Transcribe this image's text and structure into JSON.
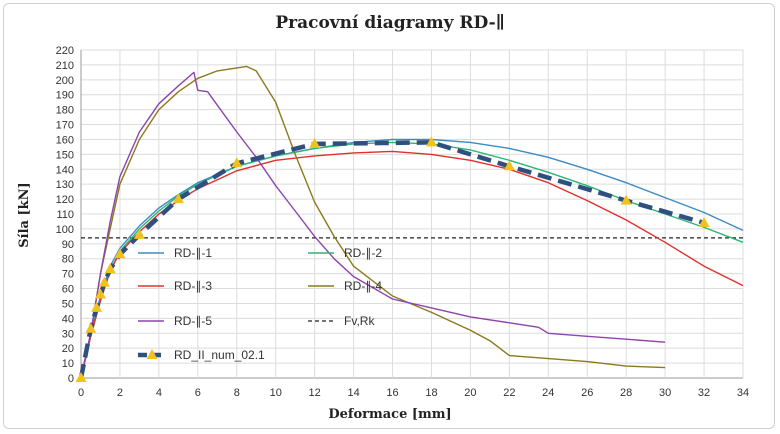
{
  "chart_data": {
    "type": "line",
    "title": "Pracovní diagramy RD-∥",
    "xlabel": "Deformace [mm]",
    "ylabel": "Síla [kN]",
    "xlim": [
      0,
      34
    ],
    "ylim": [
      0,
      220
    ],
    "xticks": [
      "0",
      "2",
      "4",
      "6",
      "8",
      "10",
      "12",
      "14",
      "16",
      "18",
      "20",
      "22",
      "24",
      "26",
      "28",
      "30",
      "32",
      "34"
    ],
    "yticks": [
      "0",
      "10",
      "20",
      "30",
      "40",
      "50",
      "60",
      "70",
      "80",
      "90",
      "100",
      "110",
      "120",
      "130",
      "140",
      "150",
      "160",
      "170",
      "180",
      "190",
      "200",
      "210",
      "220"
    ],
    "grid": true,
    "legend_position": "center-left",
    "series": [
      {
        "name": "RD-∥-1",
        "color": "#3b8bc4",
        "style": "solid",
        "x": [
          0,
          0.5,
          1,
          1.5,
          2,
          3,
          4,
          5,
          6,
          8,
          10,
          12,
          14,
          16,
          18,
          20,
          22,
          24,
          26,
          28,
          30,
          32,
          34
        ],
        "y": [
          0,
          30,
          55,
          75,
          87,
          102,
          114,
          123,
          131,
          142,
          149,
          154,
          158,
          160,
          160,
          158,
          154,
          148,
          140,
          131,
          121,
          111,
          99
        ]
      },
      {
        "name": "RD-∥-2",
        "color": "#2bb673",
        "style": "solid",
        "x": [
          0,
          0.5,
          1,
          1.5,
          2,
          3,
          4,
          5,
          6,
          8,
          10,
          12,
          14,
          16,
          18,
          20,
          22,
          24,
          26,
          28,
          30,
          32,
          34
        ],
        "y": [
          0,
          28,
          52,
          72,
          85,
          100,
          112,
          122,
          130,
          142,
          149,
          154,
          157,
          158,
          157,
          153,
          146,
          138,
          129,
          119,
          110,
          101,
          91
        ]
      },
      {
        "name": "RD-∥-3",
        "color": "#e0302a",
        "style": "solid",
        "x": [
          0,
          0.5,
          1,
          1.5,
          2,
          3,
          4,
          5,
          6,
          8,
          10,
          12,
          14,
          16,
          18,
          20,
          22,
          24,
          26,
          28,
          30,
          32,
          34
        ],
        "y": [
          0,
          28,
          52,
          72,
          84,
          98,
          110,
          119,
          127,
          139,
          146,
          149,
          151,
          152,
          150,
          146,
          140,
          131,
          119,
          106,
          91,
          75,
          62
        ]
      },
      {
        "name": "RD-∥-4",
        "color": "#8a7a1a",
        "style": "solid",
        "x": [
          0,
          0.5,
          1,
          1.5,
          2,
          3,
          4,
          5,
          6,
          7,
          8,
          8.5,
          9,
          10,
          11,
          12,
          13,
          14,
          16,
          18,
          20,
          21,
          22,
          24,
          26,
          28,
          30
        ],
        "y": [
          0,
          30,
          70,
          100,
          130,
          160,
          180,
          192,
          201,
          206,
          208,
          209,
          206,
          185,
          150,
          118,
          95,
          75,
          55,
          44,
          32,
          25,
          15,
          13,
          11,
          8,
          7
        ]
      },
      {
        "name": "RD-∥-5",
        "color": "#8e44ad",
        "style": "solid",
        "x": [
          0,
          0.5,
          1,
          1.5,
          2,
          3,
          4,
          5,
          5.8,
          6,
          6.5,
          7,
          8,
          9,
          10,
          11,
          12,
          13,
          14,
          16,
          18,
          20,
          22,
          23.5,
          24,
          26,
          28,
          30
        ],
        "y": [
          0,
          30,
          70,
          105,
          135,
          165,
          184,
          196,
          205,
          193,
          192,
          183,
          165,
          148,
          129,
          112,
          95,
          80,
          68,
          53,
          47,
          41,
          37,
          34,
          30,
          28,
          26,
          24
        ]
      },
      {
        "name": "Fv,Rk",
        "color": "#222222",
        "style": "dashed",
        "x": [
          0,
          34
        ],
        "y": [
          94,
          94
        ]
      },
      {
        "name": "RD_II_num_02.1",
        "color": "#2f4f7f",
        "style": "thick-dashed",
        "marker": "triangle",
        "marker_color": "#f2c21b",
        "x": [
          0,
          0.5,
          0.8,
          1,
          1.2,
          1.5,
          2,
          3,
          5,
          8,
          12,
          18,
          22,
          28,
          32
        ],
        "y": [
          0,
          33,
          47,
          56,
          64,
          73,
          83,
          96,
          120,
          144,
          157,
          158,
          142,
          119,
          104
        ]
      }
    ]
  }
}
